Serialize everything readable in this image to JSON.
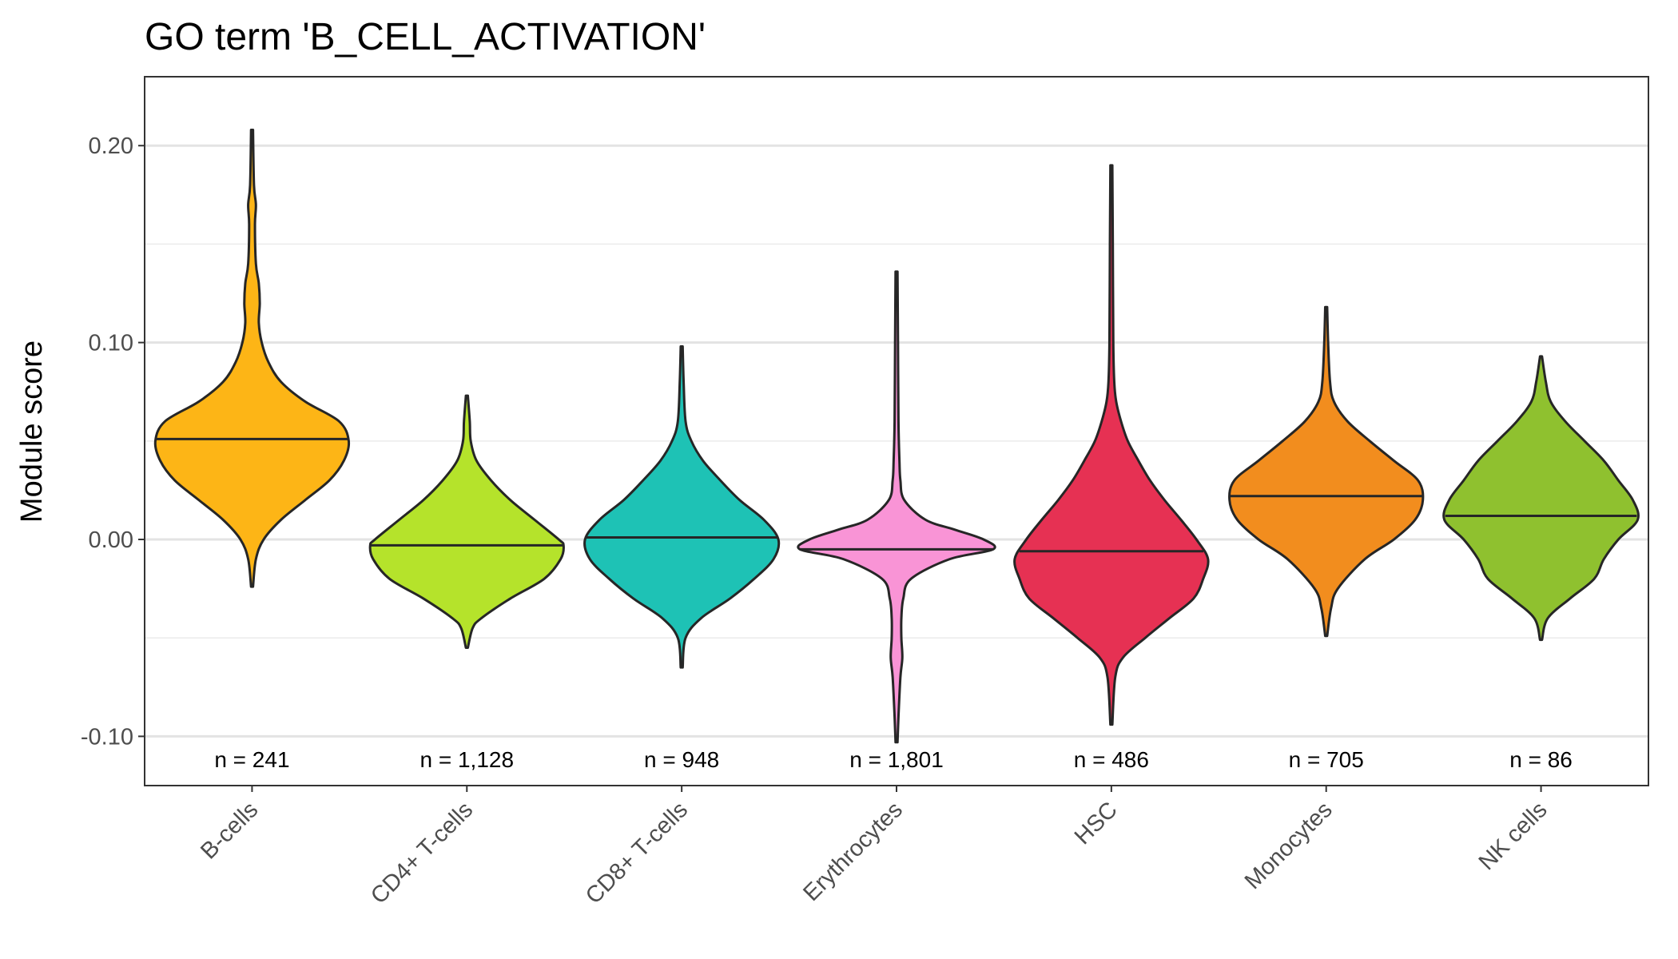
{
  "chart_data": {
    "type": "violin",
    "title": "GO term 'B_CELL_ACTIVATION'",
    "xlabel": "",
    "ylabel": "Module score",
    "ylim": [
      -0.125,
      0.235
    ],
    "yticks": [
      -0.1,
      0.0,
      0.1,
      0.2
    ],
    "ytick_labels": [
      "-0.10",
      "0.00",
      "0.10",
      "0.20"
    ],
    "grid": true,
    "legend": "none",
    "categories": [
      "B-cells",
      "CD4+ T-cells",
      "CD8+ T-cells",
      "Erythrocytes",
      "HSC",
      "Monocytes",
      "NK cells"
    ],
    "series": [
      {
        "category": "B-cells",
        "n_label": "n = 241",
        "color": "#FDB516",
        "median": 0.051,
        "min": -0.024,
        "max": 0.208,
        "density": [
          [
            -0.024,
            0.01
          ],
          [
            -0.01,
            0.04
          ],
          [
            0.0,
            0.12
          ],
          [
            0.01,
            0.3
          ],
          [
            0.02,
            0.55
          ],
          [
            0.03,
            0.8
          ],
          [
            0.04,
            0.95
          ],
          [
            0.05,
            1.0
          ],
          [
            0.06,
            0.9
          ],
          [
            0.07,
            0.55
          ],
          [
            0.08,
            0.3
          ],
          [
            0.09,
            0.17
          ],
          [
            0.1,
            0.1
          ],
          [
            0.11,
            0.07
          ],
          [
            0.12,
            0.08
          ],
          [
            0.13,
            0.07
          ],
          [
            0.14,
            0.04
          ],
          [
            0.16,
            0.03
          ],
          [
            0.17,
            0.04
          ],
          [
            0.18,
            0.02
          ],
          [
            0.208,
            0.01
          ]
        ]
      },
      {
        "category": "CD4+ T-cells",
        "n_label": "n = 1,128",
        "color": "#B5E32B",
        "median": -0.003,
        "min": -0.055,
        "max": 0.073,
        "density": [
          [
            -0.055,
            0.01
          ],
          [
            -0.045,
            0.06
          ],
          [
            -0.04,
            0.15
          ],
          [
            -0.03,
            0.45
          ],
          [
            -0.02,
            0.8
          ],
          [
            -0.01,
            0.97
          ],
          [
            -0.003,
            1.0
          ],
          [
            0.0,
            0.95
          ],
          [
            0.01,
            0.7
          ],
          [
            0.02,
            0.45
          ],
          [
            0.03,
            0.25
          ],
          [
            0.04,
            0.1
          ],
          [
            0.05,
            0.04
          ],
          [
            0.06,
            0.03
          ],
          [
            0.073,
            0.01
          ]
        ]
      },
      {
        "category": "CD8+ T-cells",
        "n_label": "n = 948",
        "color": "#1EC2B5",
        "median": 0.001,
        "min": -0.065,
        "max": 0.098,
        "density": [
          [
            -0.065,
            0.01
          ],
          [
            -0.05,
            0.04
          ],
          [
            -0.04,
            0.2
          ],
          [
            -0.03,
            0.5
          ],
          [
            -0.02,
            0.75
          ],
          [
            -0.01,
            0.95
          ],
          [
            0.0,
            1.0
          ],
          [
            0.01,
            0.85
          ],
          [
            0.02,
            0.6
          ],
          [
            0.03,
            0.4
          ],
          [
            0.04,
            0.22
          ],
          [
            0.05,
            0.1
          ],
          [
            0.06,
            0.04
          ],
          [
            0.08,
            0.02
          ],
          [
            0.098,
            0.01
          ]
        ]
      },
      {
        "category": "Erythrocytes",
        "n_label": "n = 1,801",
        "color": "#F994D6",
        "median": -0.005,
        "min": -0.103,
        "max": 0.136,
        "density": [
          [
            -0.103,
            0.01
          ],
          [
            -0.09,
            0.02
          ],
          [
            -0.07,
            0.04
          ],
          [
            -0.06,
            0.06
          ],
          [
            -0.05,
            0.05
          ],
          [
            -0.04,
            0.05
          ],
          [
            -0.03,
            0.07
          ],
          [
            -0.02,
            0.15
          ],
          [
            -0.01,
            0.55
          ],
          [
            -0.005,
            1.0
          ],
          [
            0.0,
            0.9
          ],
          [
            0.005,
            0.6
          ],
          [
            0.01,
            0.3
          ],
          [
            0.02,
            0.08
          ],
          [
            0.03,
            0.04
          ],
          [
            0.04,
            0.03
          ],
          [
            0.06,
            0.02
          ],
          [
            0.1,
            0.015
          ],
          [
            0.136,
            0.01
          ]
        ]
      },
      {
        "category": "HSC",
        "n_label": "n = 486",
        "color": "#E63153",
        "median": -0.006,
        "min": -0.094,
        "max": 0.19,
        "density": [
          [
            -0.094,
            0.01
          ],
          [
            -0.07,
            0.04
          ],
          [
            -0.06,
            0.12
          ],
          [
            -0.05,
            0.35
          ],
          [
            -0.04,
            0.6
          ],
          [
            -0.03,
            0.85
          ],
          [
            -0.02,
            0.95
          ],
          [
            -0.01,
            1.0
          ],
          [
            0.0,
            0.88
          ],
          [
            0.01,
            0.72
          ],
          [
            0.02,
            0.55
          ],
          [
            0.03,
            0.4
          ],
          [
            0.04,
            0.28
          ],
          [
            0.05,
            0.17
          ],
          [
            0.06,
            0.1
          ],
          [
            0.07,
            0.05
          ],
          [
            0.08,
            0.03
          ],
          [
            0.1,
            0.02
          ],
          [
            0.15,
            0.015
          ],
          [
            0.19,
            0.01
          ]
        ]
      },
      {
        "category": "Monocytes",
        "n_label": "n = 705",
        "color": "#F28D1E",
        "median": 0.022,
        "min": -0.049,
        "max": 0.118,
        "density": [
          [
            -0.049,
            0.01
          ],
          [
            -0.035,
            0.05
          ],
          [
            -0.025,
            0.12
          ],
          [
            -0.01,
            0.4
          ],
          [
            0.0,
            0.7
          ],
          [
            0.01,
            0.92
          ],
          [
            0.02,
            1.0
          ],
          [
            0.03,
            0.95
          ],
          [
            0.04,
            0.7
          ],
          [
            0.05,
            0.45
          ],
          [
            0.06,
            0.22
          ],
          [
            0.07,
            0.08
          ],
          [
            0.08,
            0.04
          ],
          [
            0.1,
            0.02
          ],
          [
            0.118,
            0.01
          ]
        ]
      },
      {
        "category": "NK cells",
        "n_label": "n = 86",
        "color": "#8FC12F",
        "median": 0.012,
        "min": -0.051,
        "max": 0.093,
        "density": [
          [
            -0.051,
            0.01
          ],
          [
            -0.04,
            0.07
          ],
          [
            -0.03,
            0.3
          ],
          [
            -0.02,
            0.55
          ],
          [
            -0.01,
            0.65
          ],
          [
            0.0,
            0.8
          ],
          [
            0.01,
            1.0
          ],
          [
            0.02,
            0.95
          ],
          [
            0.03,
            0.8
          ],
          [
            0.04,
            0.65
          ],
          [
            0.05,
            0.45
          ],
          [
            0.06,
            0.25
          ],
          [
            0.07,
            0.1
          ],
          [
            0.08,
            0.05
          ],
          [
            0.093,
            0.01
          ]
        ]
      }
    ]
  }
}
